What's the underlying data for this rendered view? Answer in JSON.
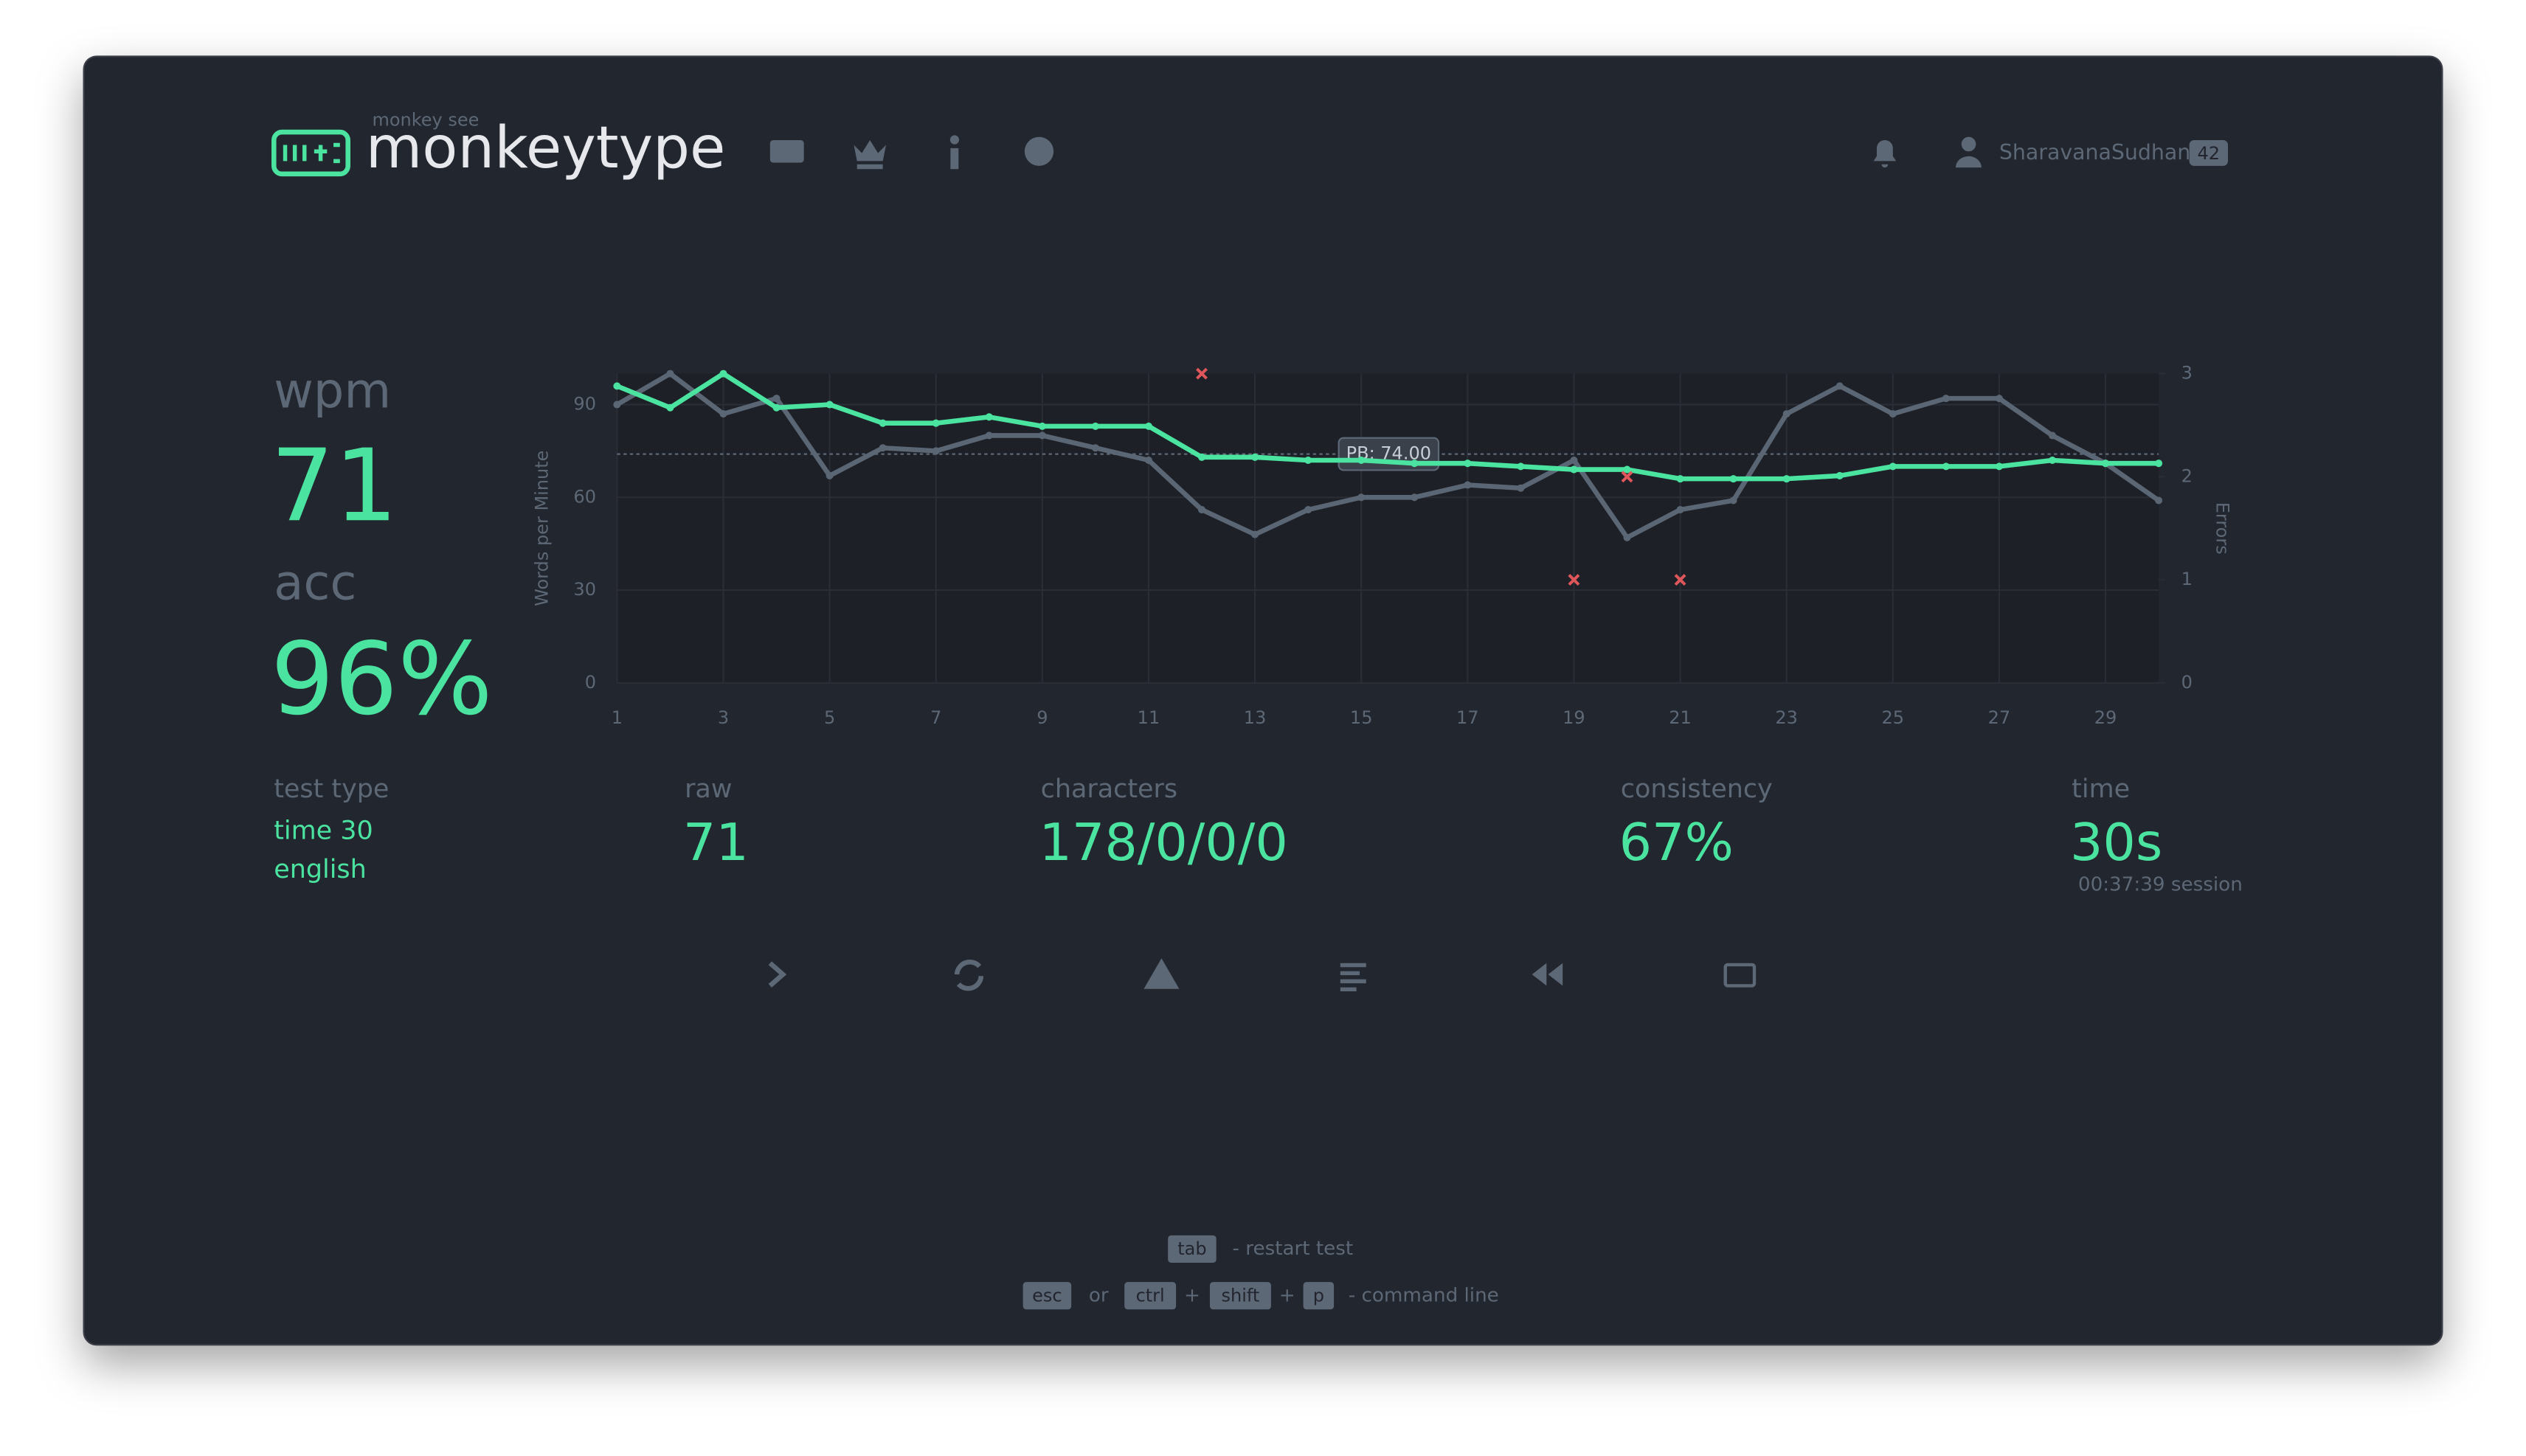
{
  "header": {
    "logo_subtitle": "monkey see",
    "logo_title": "monkeytype",
    "username": "SharavanaSudhan",
    "level": "42"
  },
  "stats": {
    "wpm_label": "wpm",
    "wpm": "71",
    "acc_label": "acc",
    "acc": "96%",
    "test_type_label": "test type",
    "test_type": [
      "time 30",
      "english"
    ],
    "raw_label": "raw",
    "raw": "71",
    "characters_label": "characters",
    "characters": "178/0/0/0",
    "consistency_label": "consistency",
    "consistency": "67%",
    "time_label": "time",
    "time": "30s",
    "session": "00:37:39 session"
  },
  "footer": {
    "line1": {
      "key": "tab",
      "text": "- restart test"
    },
    "line2": [
      "esc",
      "or",
      "ctrl",
      "+",
      "shift",
      "+",
      "p",
      "- command line"
    ]
  },
  "chart_data": {
    "type": "line",
    "y_label": "Words per Minute",
    "y2_label": "Errors",
    "x": [
      1,
      2,
      3,
      4,
      5,
      6,
      7,
      8,
      9,
      10,
      11,
      12,
      13,
      14,
      15,
      16,
      17,
      18,
      19,
      20,
      21,
      22,
      23,
      24,
      25,
      26,
      27,
      28,
      29,
      30
    ],
    "xlim": [
      1,
      30
    ],
    "xticks": [
      1,
      3,
      5,
      7,
      9,
      11,
      13,
      15,
      17,
      19,
      21,
      23,
      25,
      27,
      29
    ],
    "ylim": [
      0,
      100
    ],
    "yticks": [
      0,
      30,
      60,
      90
    ],
    "y2lim": [
      0,
      3
    ],
    "y2ticks": [
      0,
      1,
      2,
      3
    ],
    "grid": true,
    "series": [
      {
        "color": "#5b6675",
        "values": [
          90,
          100,
          87,
          92,
          67,
          76,
          75,
          80,
          80,
          76,
          72,
          56,
          48,
          56,
          60,
          60,
          64,
          63,
          72,
          47,
          56,
          59,
          87,
          96,
          87,
          92,
          92,
          80,
          71,
          59
        ]
      },
      {
        "color": "#4be3a0",
        "values": [
          96,
          89,
          100,
          89,
          90,
          84,
          84,
          86,
          83,
          83,
          83,
          73,
          73,
          72,
          72,
          71,
          71,
          70,
          69,
          69,
          66,
          66,
          66,
          67,
          70,
          70,
          70,
          72,
          71,
          71
        ]
      },
      {
        "color": "#e0575b",
        "axis": "y2",
        "marker": "cross",
        "values": [
          null,
          null,
          null,
          null,
          null,
          null,
          null,
          null,
          null,
          null,
          null,
          3,
          null,
          null,
          null,
          null,
          null,
          null,
          1,
          2,
          1,
          null,
          null,
          null,
          null,
          null,
          null,
          null,
          null,
          null
        ]
      }
    ],
    "annotations": [
      {
        "label": "PB: 74.00",
        "value": 74
      }
    ]
  }
}
